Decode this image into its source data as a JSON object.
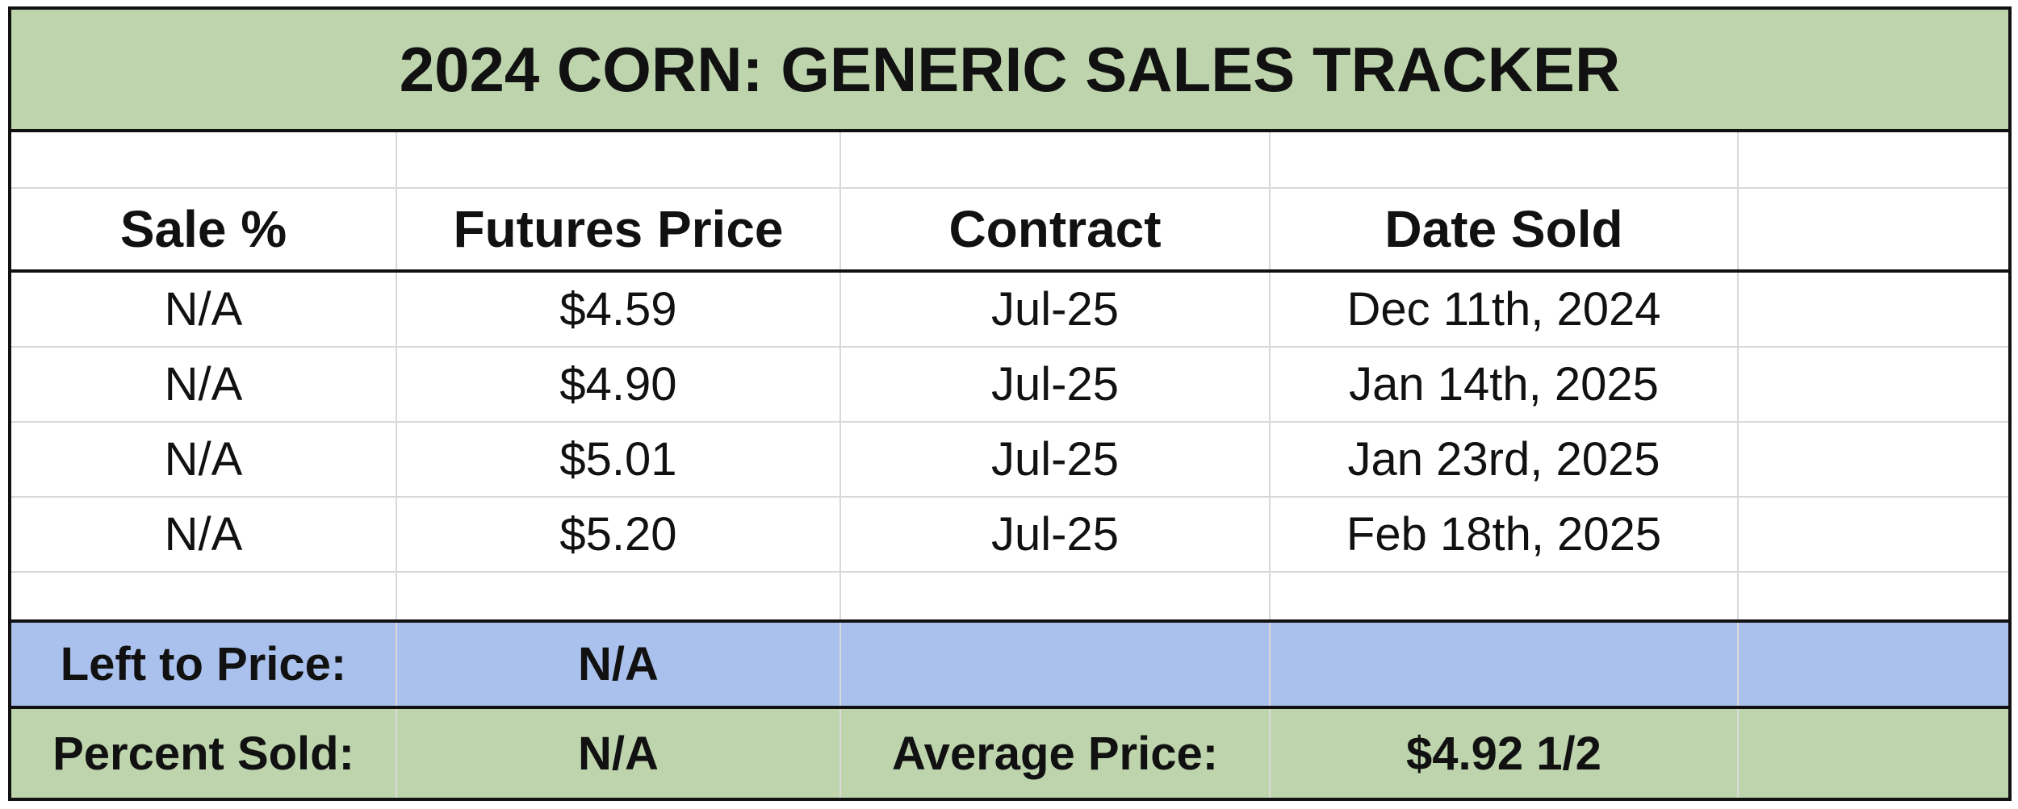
{
  "title": "2024 CORN: GENERIC SALES TRACKER",
  "columns": [
    "Sale %",
    "Futures Price",
    "Contract",
    "Date Sold"
  ],
  "sales": [
    {
      "sale_pct": "N/A",
      "futures_price": "$4.59",
      "contract": "Jul-25",
      "date_sold": "Dec 11th, 2024"
    },
    {
      "sale_pct": "N/A",
      "futures_price": "$4.90",
      "contract": "Jul-25",
      "date_sold": "Jan 14th, 2025"
    },
    {
      "sale_pct": "N/A",
      "futures_price": "$5.01",
      "contract": "Jul-25",
      "date_sold": "Jan 23rd, 2025"
    },
    {
      "sale_pct": "N/A",
      "futures_price": "$5.20",
      "contract": "Jul-25",
      "date_sold": "Feb 18th, 2025"
    }
  ],
  "summary": {
    "left_to_price_label": "Left to Price:",
    "left_to_price_value": "N/A",
    "percent_sold_label": "Percent Sold:",
    "percent_sold_value": "N/A",
    "average_price_label": "Average Price:",
    "average_price_value": "$4.92 1/2"
  },
  "colors": {
    "title_green": "#bdd4ac",
    "summary_blue": "#aac1ed",
    "summary_green": "#bdd4ac",
    "gridline_gray": "#d9d9d9",
    "border_black": "#111111"
  }
}
